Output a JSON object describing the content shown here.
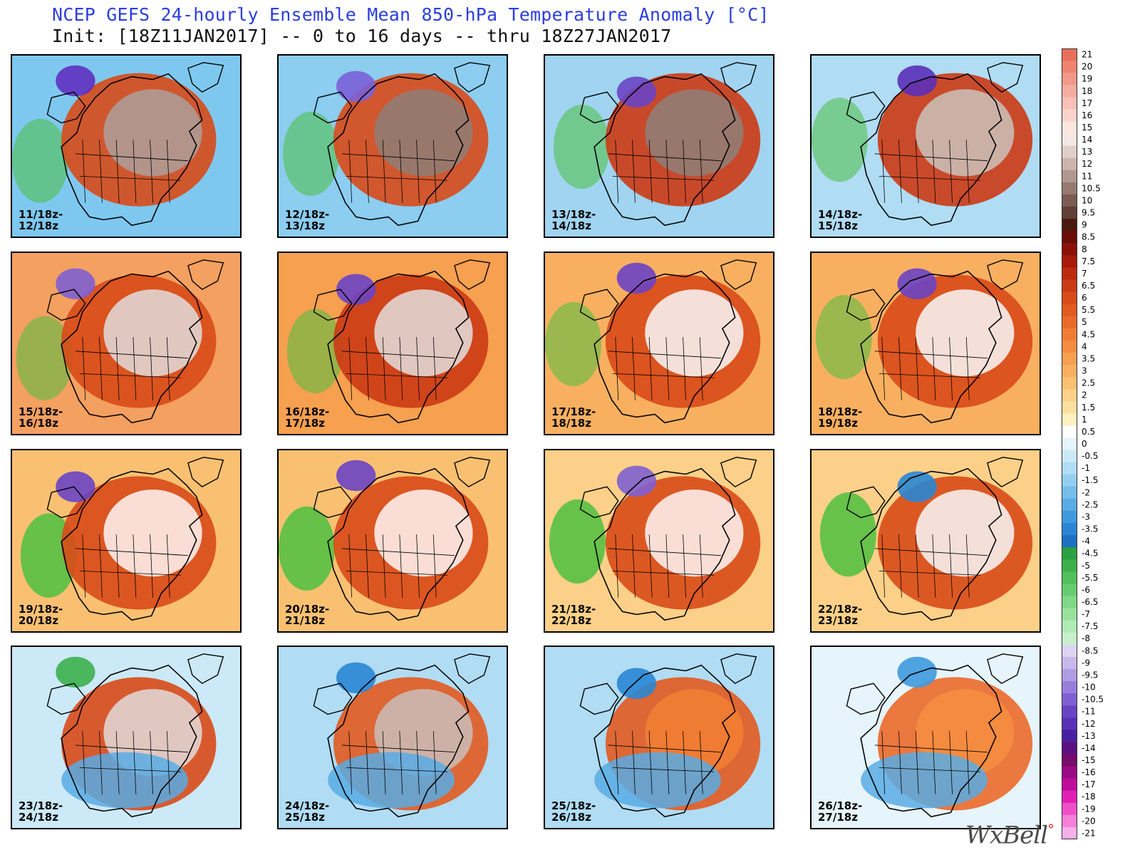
{
  "title": "NCEP GEFS 24-hourly Ensemble Mean 850-hPa Temperature Anomaly [°C]",
  "subtitle": "Init: [18Z11JAN2017] -- 0 to 16 days -- thru 18Z27JAN2017",
  "credit": "WxBell",
  "colors": {
    "title": "#2a3de0",
    "warm_core": "#efe6e3",
    "warm_mid": "#5a3a32",
    "warm": "#d8401a",
    "cold": "#3aa0e8",
    "cold_strong": "#6030c0",
    "green": "#4cc040"
  },
  "panels": [
    {
      "line1": "11/18z-",
      "line2": "12/18z"
    },
    {
      "line1": "12/18z-",
      "line2": "13/18z"
    },
    {
      "line1": "13/18z-",
      "line2": "14/18z"
    },
    {
      "line1": "14/18z-",
      "line2": "15/18z"
    },
    {
      "line1": "15/18z-",
      "line2": "16/18z"
    },
    {
      "line1": "16/18z-",
      "line2": "17/18z"
    },
    {
      "line1": "17/18z-",
      "line2": "18/18z"
    },
    {
      "line1": "18/18z-",
      "line2": "19/18z"
    },
    {
      "line1": "19/18z-",
      "line2": "20/18z"
    },
    {
      "line1": "20/18z-",
      "line2": "21/18z"
    },
    {
      "line1": "21/18z-",
      "line2": "22/18z"
    },
    {
      "line1": "22/18z-",
      "line2": "23/18z"
    },
    {
      "line1": "23/18z-",
      "line2": "24/18z"
    },
    {
      "line1": "24/18z-",
      "line2": "25/18z"
    },
    {
      "line1": "25/18z-",
      "line2": "26/18z"
    },
    {
      "line1": "26/18z-",
      "line2": "27/18z"
    }
  ],
  "colorbar": {
    "labels": [
      "21",
      "20",
      "19",
      "18",
      "17",
      "16",
      "15",
      "14",
      "13",
      "12",
      "11",
      "10.5",
      "10",
      "9.5",
      "9",
      "8.5",
      "8",
      "7.5",
      "7",
      "6.5",
      "6",
      "5.5",
      "5",
      "4.5",
      "4",
      "3.5",
      "3",
      "2.5",
      "2",
      "1.5",
      "1",
      "0.5",
      "0",
      "-0.5",
      "-1",
      "-1.5",
      "-2",
      "-2.5",
      "-3",
      "-3.5",
      "-4",
      "-4.5",
      "-5",
      "-5.5",
      "-6",
      "-6.5",
      "-7",
      "-7.5",
      "-8",
      "-8.5",
      "-9",
      "-9.5",
      "-10",
      "-10.5",
      "-11",
      "-12",
      "-13",
      "-14",
      "-15",
      "-16",
      "-17",
      "-18",
      "-19",
      "-20",
      "-21"
    ],
    "colors": [
      "#e8705a",
      "#ee8470",
      "#f29888",
      "#f5aca0",
      "#f8c0b6",
      "#fad4cc",
      "#fbe6e0",
      "#f4e8e4",
      "#e0cfc9",
      "#cbb5ad",
      "#b09890",
      "#967a70",
      "#7a5c52",
      "#604038",
      "#4a1a10",
      "#6a0c06",
      "#8a1208",
      "#a61a0a",
      "#bc2a10",
      "#cc3a14",
      "#d84a18",
      "#e25a20",
      "#ea6a2a",
      "#f07c34",
      "#f48c40",
      "#f6a050",
      "#f8b060",
      "#fac072",
      "#fcd088",
      "#fde0a0",
      "#fff0c0",
      "#ffffff",
      "#e6f4fb",
      "#cce9f8",
      "#b0dcf4",
      "#94cef0",
      "#76bdea",
      "#58ace4",
      "#3e9ade",
      "#2a86d4",
      "#1e70c4",
      "#2aa040",
      "#3cb04c",
      "#50bf5c",
      "#66cc70",
      "#7ed886",
      "#98e29e",
      "#b0eab4",
      "#c8f0cc",
      "#dcd4f2",
      "#c8b8ec",
      "#b09ce4",
      "#987edc",
      "#8060d0",
      "#6a44c4",
      "#5a30b8",
      "#4a20a0",
      "#5a1080",
      "#760c6c",
      "#9a0a84",
      "#c00c9c",
      "#e020b4",
      "#ee50c8",
      "#f480d8",
      "#f8b0e8"
    ]
  }
}
